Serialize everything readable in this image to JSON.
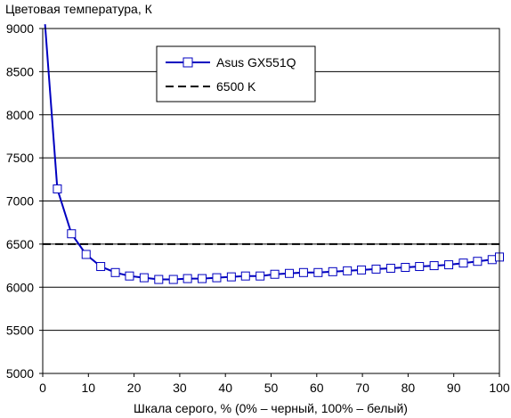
{
  "chart_data": {
    "type": "line",
    "title": "",
    "ylabel": "Цветовая температура, К",
    "xlabel": "Шкала серого, % (0% – черный, 100% – белый)",
    "xlim": [
      0,
      100
    ],
    "ylim": [
      5000,
      9000
    ],
    "xticks": [
      0,
      10,
      20,
      30,
      40,
      50,
      60,
      70,
      80,
      90,
      100
    ],
    "yticks": [
      5000,
      5500,
      6000,
      6500,
      7000,
      7500,
      8000,
      8500,
      9000
    ],
    "grid": "horizontal",
    "legend_position": "top-center",
    "series": [
      {
        "name": "Asus GX551Q",
        "color": "#0000c0",
        "marker": "square",
        "x": [
          0.5,
          3.2,
          6.3,
          9.5,
          12.7,
          15.9,
          19.0,
          22.2,
          25.4,
          28.6,
          31.7,
          34.9,
          38.1,
          41.3,
          44.4,
          47.6,
          50.8,
          54.0,
          57.1,
          60.3,
          63.5,
          66.7,
          69.8,
          73.0,
          76.2,
          79.4,
          82.5,
          85.7,
          88.9,
          92.1,
          95.2,
          98.4,
          100
        ],
        "y": [
          9050,
          7140,
          6620,
          6380,
          6240,
          6170,
          6130,
          6110,
          6090,
          6090,
          6100,
          6100,
          6110,
          6120,
          6130,
          6130,
          6150,
          6160,
          6170,
          6170,
          6180,
          6190,
          6200,
          6210,
          6220,
          6230,
          6240,
          6250,
          6260,
          6280,
          6300,
          6320,
          6350
        ]
      },
      {
        "name": "6500 K",
        "color": "#000000",
        "style": "dashed",
        "x": [
          0,
          100
        ],
        "y": [
          6500,
          6500
        ]
      }
    ]
  }
}
